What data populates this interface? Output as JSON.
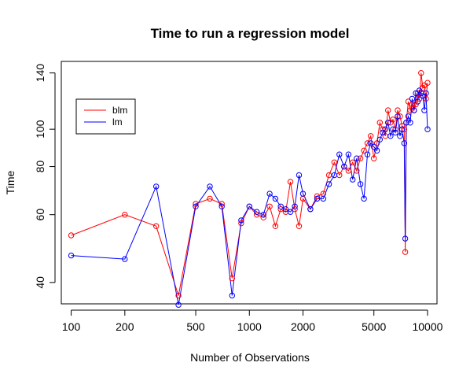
{
  "chart_data": {
    "type": "line",
    "title": "Time to run a regression model",
    "xlabel": "Number of Observations",
    "ylabel": "Time",
    "x_scale": "log",
    "y_scale": "log",
    "xlim": [
      88,
      11300
    ],
    "ylim": [
      35.2,
      150
    ],
    "x_ticks": [
      100,
      200,
      500,
      1000,
      2000,
      5000,
      10000
    ],
    "x_tick_labels": [
      "100",
      "200",
      "500",
      "1000",
      "2000",
      "5000",
      "10000"
    ],
    "y_ticks": [
      40,
      60,
      80,
      100,
      140
    ],
    "y_tick_labels": [
      "40",
      "60",
      "80",
      "100",
      "140"
    ],
    "grid": false,
    "legend": {
      "position": "top-left",
      "boxed": true
    },
    "plot_style": "both lines and open circle markers",
    "series": [
      {
        "name": "blm",
        "color": "#FF0000",
        "points": [
          [
            100,
            53
          ],
          [
            200,
            60
          ],
          [
            300,
            56
          ],
          [
            400,
            37
          ],
          [
            500,
            64
          ],
          [
            600,
            66
          ],
          [
            700,
            64
          ],
          [
            800,
            41
          ],
          [
            900,
            57
          ],
          [
            1000,
            63
          ],
          [
            1100,
            60
          ],
          [
            1200,
            59
          ],
          [
            1300,
            63
          ],
          [
            1400,
            56
          ],
          [
            1500,
            62
          ],
          [
            1600,
            61
          ],
          [
            1700,
            73
          ],
          [
            1800,
            62
          ],
          [
            1900,
            56
          ],
          [
            2000,
            66
          ],
          [
            2200,
            62
          ],
          [
            2400,
            67
          ],
          [
            2600,
            68
          ],
          [
            2800,
            76
          ],
          [
            3000,
            82
          ],
          [
            3200,
            76
          ],
          [
            3400,
            80
          ],
          [
            3600,
            78
          ],
          [
            3800,
            82
          ],
          [
            4000,
            78
          ],
          [
            4200,
            84
          ],
          [
            4400,
            88
          ],
          [
            4600,
            92
          ],
          [
            4800,
            96
          ],
          [
            5000,
            84
          ],
          [
            5200,
            92
          ],
          [
            5400,
            104
          ],
          [
            5600,
            100
          ],
          [
            5800,
            96
          ],
          [
            6000,
            112
          ],
          [
            6200,
            104
          ],
          [
            6400,
            106
          ],
          [
            6600,
            100
          ],
          [
            6800,
            112
          ],
          [
            7000,
            108
          ],
          [
            7200,
            102
          ],
          [
            7400,
            100
          ],
          [
            7500,
            48
          ],
          [
            7600,
            104
          ],
          [
            7800,
            118
          ],
          [
            8000,
            112
          ],
          [
            8200,
            116
          ],
          [
            8400,
            112
          ],
          [
            8600,
            116
          ],
          [
            8800,
            124
          ],
          [
            9000,
            120
          ],
          [
            9200,
            140
          ],
          [
            9400,
            128
          ],
          [
            9600,
            130
          ],
          [
            9800,
            120
          ],
          [
            10000,
            132
          ]
        ]
      },
      {
        "name": "lm",
        "color": "#0000FF",
        "points": [
          [
            100,
            47
          ],
          [
            200,
            46
          ],
          [
            300,
            71
          ],
          [
            400,
            35
          ],
          [
            500,
            63
          ],
          [
            600,
            71
          ],
          [
            700,
            63
          ],
          [
            800,
            37
          ],
          [
            900,
            58
          ],
          [
            1000,
            63
          ],
          [
            1100,
            61
          ],
          [
            1200,
            60
          ],
          [
            1300,
            68
          ],
          [
            1400,
            66
          ],
          [
            1500,
            63
          ],
          [
            1600,
            62
          ],
          [
            1700,
            61
          ],
          [
            1800,
            63
          ],
          [
            1900,
            76
          ],
          [
            2000,
            68
          ],
          [
            2200,
            62
          ],
          [
            2400,
            66
          ],
          [
            2600,
            66
          ],
          [
            2800,
            72
          ],
          [
            3000,
            76
          ],
          [
            3200,
            86
          ],
          [
            3400,
            80
          ],
          [
            3600,
            86
          ],
          [
            3800,
            74
          ],
          [
            4000,
            84
          ],
          [
            4200,
            72
          ],
          [
            4400,
            66
          ],
          [
            4600,
            86
          ],
          [
            4800,
            92
          ],
          [
            5000,
            90
          ],
          [
            5200,
            88
          ],
          [
            5400,
            94
          ],
          [
            5600,
            98
          ],
          [
            5800,
            100
          ],
          [
            6000,
            104
          ],
          [
            6200,
            96
          ],
          [
            6400,
            100
          ],
          [
            6600,
            98
          ],
          [
            6800,
            108
          ],
          [
            7000,
            96
          ],
          [
            7200,
            100
          ],
          [
            7400,
            92
          ],
          [
            7500,
            52
          ],
          [
            7600,
            104
          ],
          [
            7800,
            108
          ],
          [
            8000,
            104
          ],
          [
            8200,
            120
          ],
          [
            8400,
            112
          ],
          [
            8600,
            124
          ],
          [
            8800,
            118
          ],
          [
            9000,
            126
          ],
          [
            9200,
            124
          ],
          [
            9400,
            122
          ],
          [
            9600,
            112
          ],
          [
            9800,
            124
          ],
          [
            10000,
            100
          ]
        ]
      }
    ]
  }
}
